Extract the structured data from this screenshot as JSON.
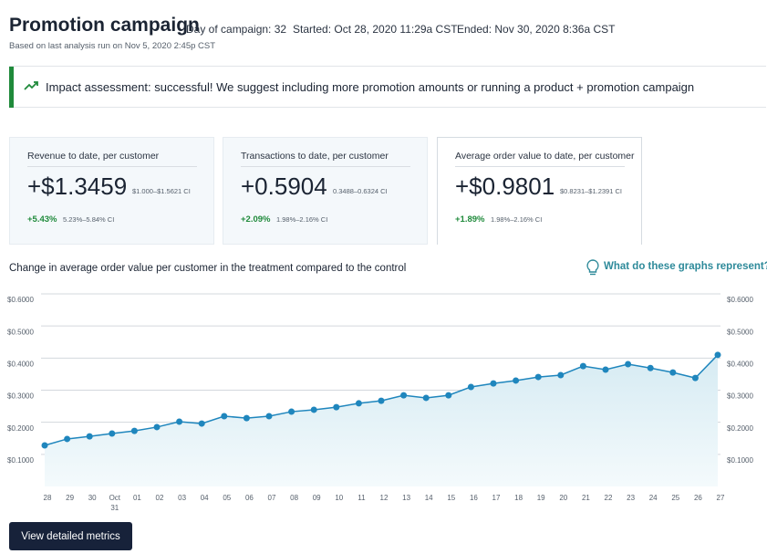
{
  "header": {
    "title": "Promotion campaign",
    "day": "Day of campaign: 32",
    "started": "Started: Oct 28, 2020 11:29a CST",
    "ended": "Ended: Nov 30, 2020 8:36a CST",
    "subtitle": "Based on last analysis run on Nov 5, 2020 2:45p CST"
  },
  "banner": {
    "text": "Impact assessment: successful! We suggest including more promotion amounts or running a product + promotion campaign"
  },
  "cards": [
    {
      "label": "Revenue to date, per customer",
      "value": "+$1.3459",
      "ci": "$1.000–$1.5621 CI",
      "change": "+5.43%",
      "change_ci": "5.23%–5.84% CI"
    },
    {
      "label": "Transactions to date, per customer",
      "value": "+0.5904",
      "ci": "0.3488–0.6324 CI",
      "change": "+2.09%",
      "change_ci": "1.98%–2.16% CI"
    },
    {
      "label": "Average order value to date, per customer",
      "value": "+$0.9801",
      "ci": "$0.8231–$1.2391 CI",
      "change": "+1.89%",
      "change_ci": "1.98%–2.16% CI"
    }
  ],
  "help_link": "What do these graphs represent?",
  "button": "View detailed metrics",
  "chart_data": {
    "type": "area",
    "title": "Change in average order value per customer in the treatment compared to the control",
    "categories": [
      "28",
      "29",
      "30",
      "Oct 31",
      "01",
      "02",
      "03",
      "04",
      "05",
      "06",
      "07",
      "08",
      "09",
      "10",
      "11",
      "12",
      "13",
      "14",
      "15",
      "16",
      "17",
      "18",
      "19",
      "20",
      "21",
      "22",
      "23",
      "24",
      "25",
      "26",
      "27"
    ],
    "values": [
      0.128,
      0.148,
      0.156,
      0.165,
      0.173,
      0.185,
      0.202,
      0.196,
      0.219,
      0.213,
      0.219,
      0.233,
      0.239,
      0.247,
      0.259,
      0.267,
      0.284,
      0.276,
      0.284,
      0.31,
      0.321,
      0.33,
      0.341,
      0.347,
      0.375,
      0.364,
      0.381,
      0.369,
      0.355,
      0.338,
      0.41
    ],
    "color": "#1f86bd",
    "ylim": [
      0,
      0.6
    ],
    "yticks": [
      {
        "value": 0.1,
        "label": "$0.1000"
      },
      {
        "value": 0.2,
        "label": "$0.2000"
      },
      {
        "value": 0.3,
        "label": "$0.3000"
      },
      {
        "value": 0.4,
        "label": "$0.4000"
      },
      {
        "value": 0.5,
        "label": "$0.5000"
      },
      {
        "value": 0.6,
        "label": "$0.6000"
      }
    ],
    "grid": true
  }
}
